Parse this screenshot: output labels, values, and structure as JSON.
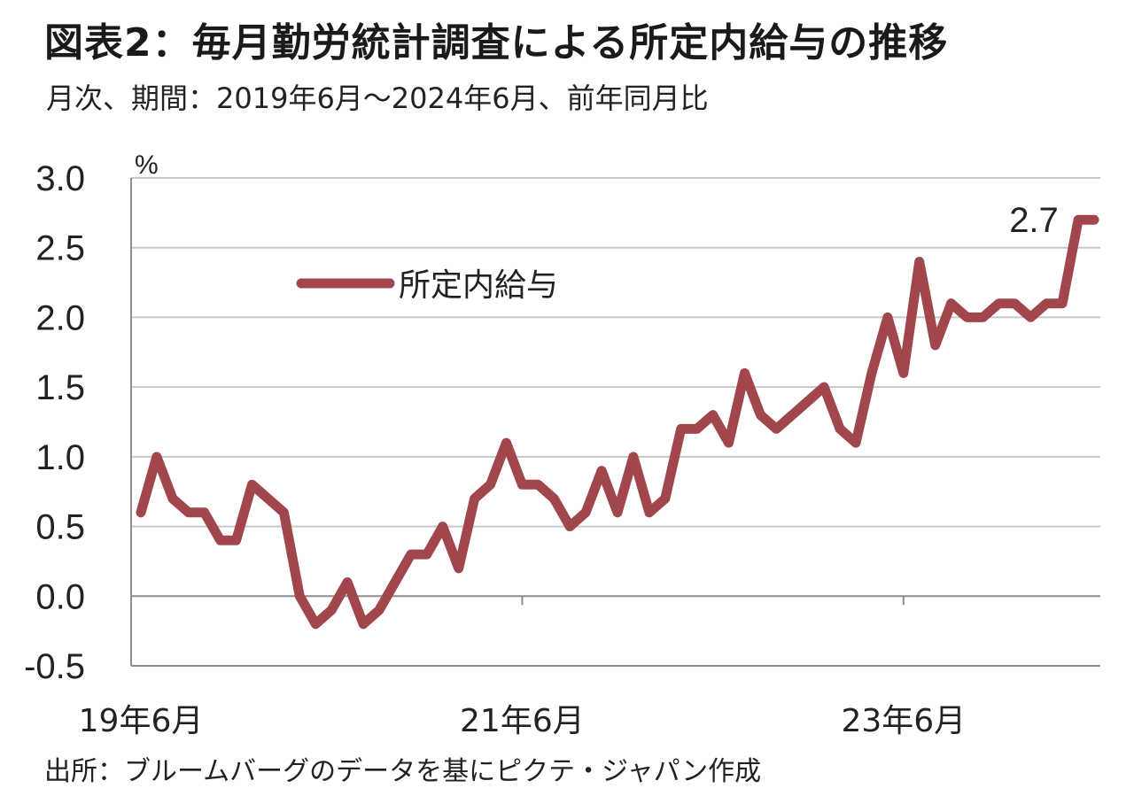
{
  "header": {
    "title": "図表2：毎月勤労統計調査による所定内給与の推移",
    "subtitle": "月次、期間：2019年6月～2024年6月、前年同月比"
  },
  "footer": {
    "source": "出所：ブルームバーグのデータを基にピクテ・ジャパン作成"
  },
  "colors": {
    "series": "#a0464c",
    "grid": "#c8c8c8",
    "axis": "#8c8c8c"
  },
  "chart_data": {
    "type": "line",
    "unit_label": "%",
    "ylim": [
      -0.5,
      3.0
    ],
    "yticks": [
      "3.0",
      "2.5",
      "2.0",
      "1.5",
      "1.0",
      "0.5",
      "0.0",
      "-0.5"
    ],
    "xtick_labels": [
      "19年6月",
      "21年6月",
      "23年6月"
    ],
    "xtick_index": [
      0,
      24,
      48
    ],
    "grid": true,
    "legend_position": "top-left",
    "annotation": {
      "text": "2.7",
      "index": 60
    },
    "series": [
      {
        "name": "所定内給与",
        "values": [
          0.6,
          1.0,
          0.7,
          0.6,
          0.6,
          0.4,
          0.4,
          0.8,
          0.7,
          0.6,
          0.0,
          -0.2,
          -0.1,
          0.1,
          -0.2,
          -0.1,
          0.1,
          0.3,
          0.3,
          0.5,
          0.2,
          0.7,
          0.8,
          1.1,
          0.8,
          0.8,
          0.7,
          0.5,
          0.6,
          0.9,
          0.6,
          1.0,
          0.6,
          0.7,
          1.2,
          1.2,
          1.3,
          1.1,
          1.6,
          1.3,
          1.2,
          1.3,
          1.4,
          1.5,
          1.2,
          1.1,
          1.6,
          2.0,
          1.6,
          2.4,
          1.8,
          2.1,
          2.0,
          2.0,
          2.1,
          2.1,
          2.0,
          2.1,
          2.1,
          2.7,
          2.7
        ]
      }
    ]
  }
}
